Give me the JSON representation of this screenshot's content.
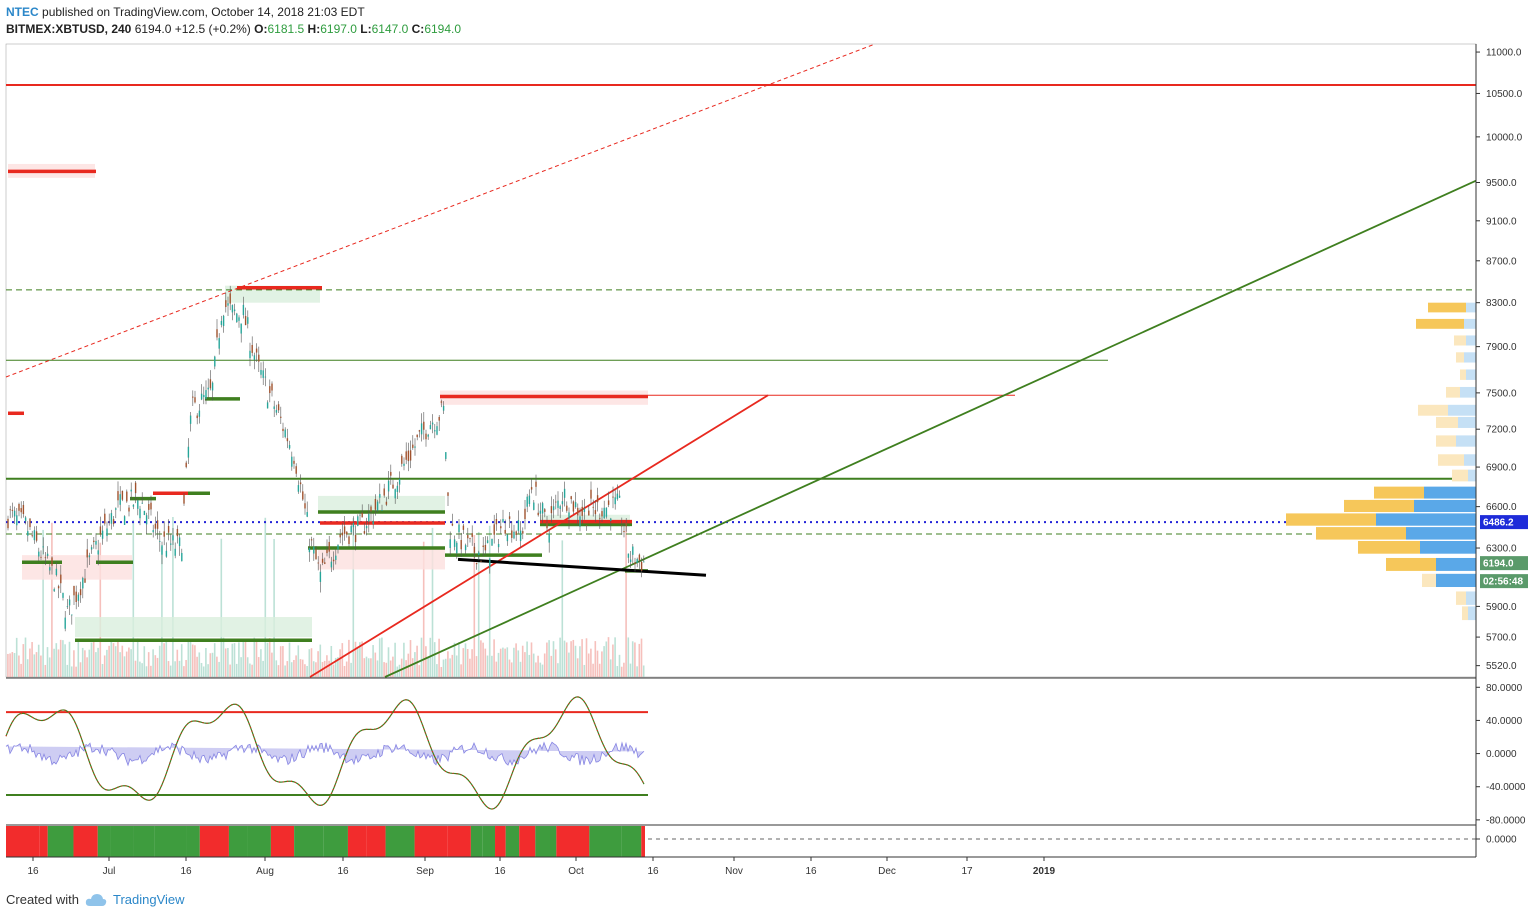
{
  "header": {
    "author": "NTEC",
    "published": "published on TradingView.com, October 14, 2018 21:03 EDT",
    "symbol": "BITMEX:XBTUSD, 240",
    "last": "6194.0",
    "change": "+12.5 (+0.2%)",
    "o_label": "O:",
    "o": "6181.5",
    "h_label": "H:",
    "h": "6197.0",
    "l_label": "L:",
    "l": "6147.0",
    "c_label": "C:",
    "c": "6194.0"
  },
  "footer": {
    "created_with": "Created with",
    "brand": "TradingView"
  },
  "colors": {
    "red": "#e8291f",
    "green": "#3f7f1f",
    "blue_dots": "#2323d8",
    "axis": "#333333",
    "price_badge_blue": "#1e2bd9",
    "price_badge_green": "#5a9a6a",
    "vp_yellow": "#f6c75a",
    "vp_blue": "#5aa8e8"
  },
  "chart_data": [
    {
      "type": "candlestick",
      "title": "BITMEX:XBTUSD, 240",
      "y_scale": "log",
      "ylim": [
        5450,
        11100
      ],
      "y_ticks": [
        "11000.0",
        "10500.0",
        "10000.0",
        "9500.0",
        "9100.0",
        "8700.0",
        "8300.0",
        "7900.0",
        "7500.0",
        "7200.0",
        "6900.0",
        "6600.0",
        "6300.0",
        "5900.0",
        "5700.0",
        "5520.0"
      ],
      "x_ticks": [
        "16",
        "Jul",
        "16",
        "Aug",
        "16",
        "Sep",
        "16",
        "Oct",
        "16",
        "Nov",
        "16",
        "Dec",
        "17",
        "2019"
      ],
      "price_badges": [
        {
          "label": "6486.2",
          "value": 6486.2,
          "color": "#1e2bd9"
        },
        {
          "label": "6194.0",
          "value": 6194.0,
          "color": "#5a9a6a"
        },
        {
          "label": "02:56:48",
          "value": null,
          "color": "#5a9a6a"
        }
      ],
      "close_path": [
        [
          "Jun 12",
          6550
        ],
        [
          "Jun 16",
          6450
        ],
        [
          "Jun 22",
          6050
        ],
        [
          "Jun 24",
          5850
        ],
        [
          "Jun 27",
          6100
        ],
        [
          "Jun 30",
          6350
        ],
        [
          "Jul 4",
          6600
        ],
        [
          "Jul 8",
          6650
        ],
        [
          "Jul 12",
          6350
        ],
        [
          "Jul 16",
          6300
        ],
        [
          "Jul 18",
          7350
        ],
        [
          "Jul 22",
          7500
        ],
        [
          "Jul 24",
          8300
        ],
        [
          "Jul 26",
          8200
        ],
        [
          "Jul 28",
          8200
        ],
        [
          "Jul 31",
          7700
        ],
        [
          "Aug 4",
          7300
        ],
        [
          "Aug 7",
          7000
        ],
        [
          "Aug 10",
          6350
        ],
        [
          "Aug 12",
          6100
        ],
        [
          "Aug 16",
          6400
        ],
        [
          "Aug 20",
          6450
        ],
        [
          "Aug 24",
          6650
        ],
        [
          "Aug 28",
          6900
        ],
        [
          "Sep 2",
          7250
        ],
        [
          "Sep 5",
          7350
        ],
        [
          "Sep 6",
          6450
        ],
        [
          "Sep 10",
          6300
        ],
        [
          "Sep 13",
          6250
        ],
        [
          "Sep 17",
          6500
        ],
        [
          "Sep 20",
          6400
        ],
        [
          "Sep 22",
          6750
        ],
        [
          "Sep 25",
          6450
        ],
        [
          "Sep 28",
          6700
        ],
        [
          "Oct 2",
          6550
        ],
        [
          "Oct 6",
          6600
        ],
        [
          "Oct 9",
          6600
        ],
        [
          "Oct 11",
          6250
        ],
        [
          "Oct 14",
          6194
        ]
      ]
    },
    {
      "type": "line",
      "title": "oscillator",
      "ylim": [
        -85,
        90
      ],
      "y_ticks": [
        "80.0000",
        "40.0000",
        "0.0000",
        "-40.0000",
        "-80.0000"
      ],
      "upper_level": 50,
      "lower_level": -50
    },
    {
      "type": "heatmap",
      "title": "momentum strip",
      "y_ticks": [
        "0.0000"
      ]
    }
  ]
}
